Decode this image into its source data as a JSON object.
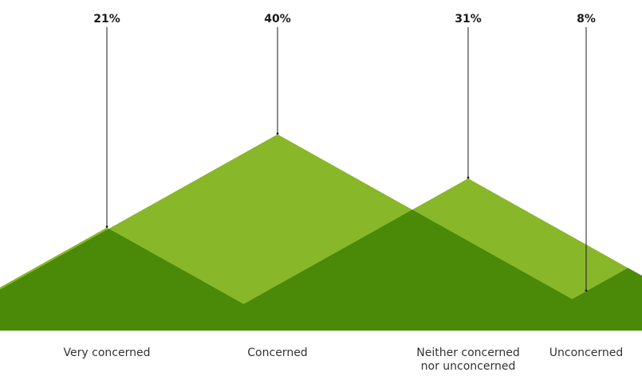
{
  "chart_data": {
    "type": "bar",
    "title": "",
    "xlabel": "",
    "ylabel": "",
    "categories": [
      [
        "Very concerned"
      ],
      [
        "Concerned"
      ],
      [
        "Neither concerned",
        "nor unconcerned"
      ],
      [
        "Unconcerned"
      ]
    ],
    "values": [
      21,
      40,
      31,
      8
    ],
    "value_labels": [
      "21%",
      "40%",
      "31%",
      "8%"
    ],
    "ylim": [
      0,
      50
    ],
    "grid": false,
    "legend": "none"
  },
  "colors": {
    "triangle": "#88b72a",
    "overlap": "#4a8a08",
    "text": "#1a1a1a"
  }
}
